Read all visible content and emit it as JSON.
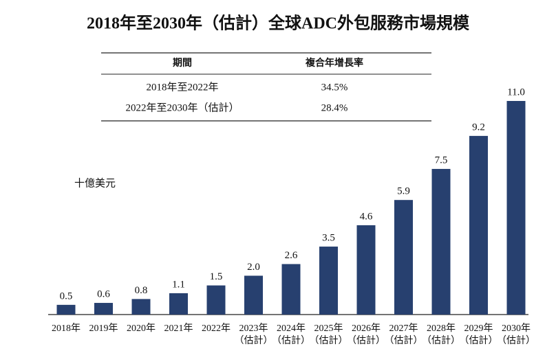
{
  "chart_data": {
    "type": "bar",
    "title": "2018年至2030年（估計）全球ADC外包服務市場規模",
    "unit_label": "十億美元",
    "table": {
      "header": [
        "期間",
        "複合年增長率"
      ],
      "rows": [
        [
          "2018年至2022年",
          "34.5%"
        ],
        [
          "2022年至2030年（估計）",
          "28.4%"
        ]
      ]
    },
    "categories": [
      "2018年",
      "2019年",
      "2020年",
      "2021年",
      "2022年",
      "2023年\n（估計）",
      "2024年\n（估計）",
      "2025年\n（估計）",
      "2026年\n（估計）",
      "2027年\n（估計）",
      "2028年\n（估計）",
      "2029年\n（估計）",
      "2030年\n（估計）"
    ],
    "values": [
      0.5,
      0.6,
      0.8,
      1.1,
      1.5,
      2.0,
      2.6,
      3.5,
      4.6,
      5.9,
      7.5,
      9.2,
      11.0
    ],
    "value_labels": [
      "0.5",
      "0.6",
      "0.8",
      "1.1",
      "1.5",
      "2.0",
      "2.6",
      "3.5",
      "4.6",
      "5.9",
      "7.5",
      "9.2",
      "11.0"
    ],
    "color": "#27406f"
  }
}
